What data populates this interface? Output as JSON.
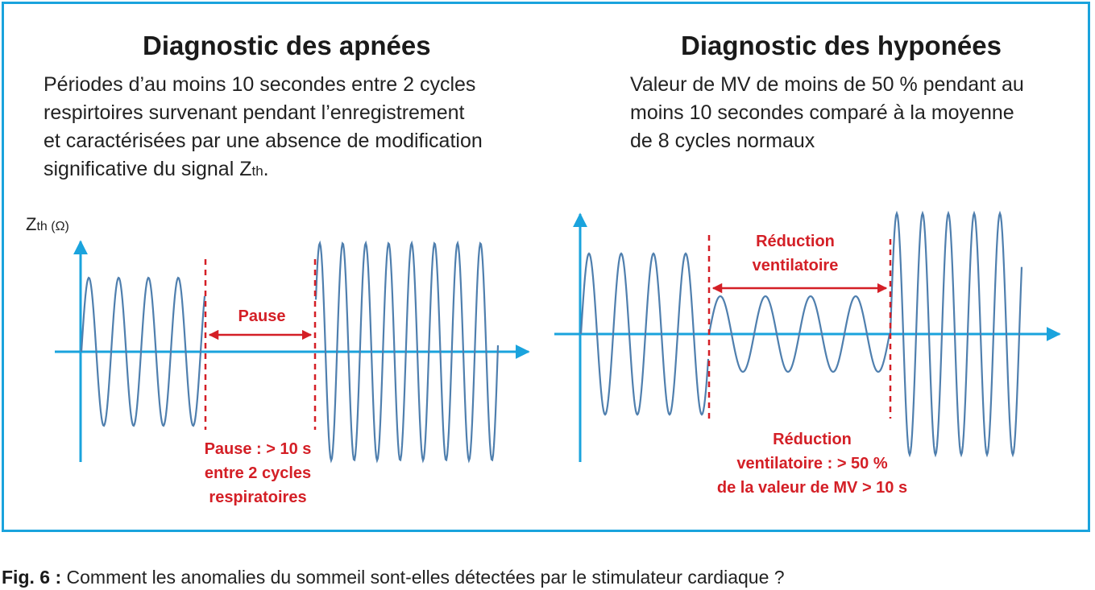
{
  "left": {
    "title": "Diagnostic des apnées",
    "desc_lines": [
      "Périodes d’au moins 10 secondes entre 2 cycles",
      "respirtoires survenant pendant l’enregistrement",
      "et caractérisées par une absence de modification",
      "significative du signal Z"
    ],
    "desc_sub": "th",
    "desc_tail": ".",
    "y_axis_main": "Z",
    "y_axis_sub": "th (Ω)",
    "pause_label": "Pause",
    "note_lines": [
      "Pause : > 10 s",
      "entre 2 cycles",
      "respiratoires"
    ]
  },
  "right": {
    "title": "Diagnostic des hyponées",
    "desc_lines": [
      "Valeur de MV de moins de 50 % pendant au",
      "moins 10 secondes comparé à la moyenne",
      "de 8 cycles normaux"
    ],
    "reduction_label_lines": [
      "Réduction",
      "ventilatoire"
    ],
    "note_lines": [
      "Réduction",
      "ventilatoire : > 50 %",
      "de la valeur de MV > 10 s"
    ]
  },
  "caption": {
    "label": "Fig. 6 :",
    "text": " Comment les anomalies du sommeil sont-elles détectées par le stimulateur cardiaque ?"
  },
  "colors": {
    "frame": "#1aa3dd",
    "axis": "#1aa3dd",
    "signal": "#4f7fae",
    "annotation": "#d41f26"
  }
}
